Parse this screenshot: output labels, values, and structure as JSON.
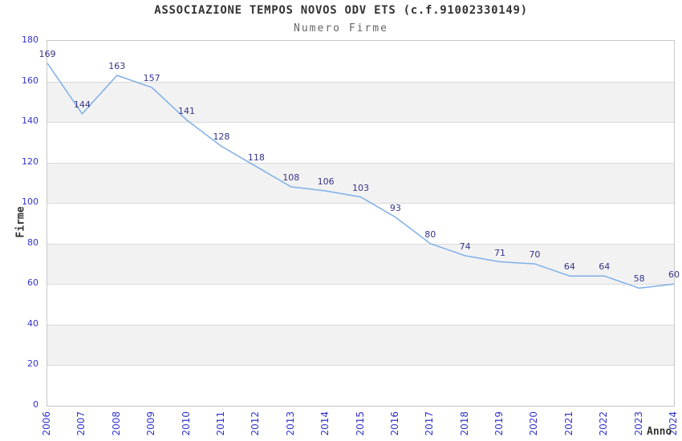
{
  "chart_data": {
    "type": "line",
    "title": "ASSOCIAZIONE TEMPOS NOVOS ODV ETS (c.f.91002330149)",
    "subtitle": "Numero Firme",
    "xlabel": "Anno",
    "ylabel": "Firme",
    "categories": [
      "2006",
      "2007",
      "2008",
      "2009",
      "2010",
      "2011",
      "2012",
      "2013",
      "2014",
      "2015",
      "2016",
      "2017",
      "2018",
      "2019",
      "2020",
      "2021",
      "2022",
      "2023",
      "2024"
    ],
    "series": [
      {
        "name": "Numero Firme",
        "values": [
          169,
          144,
          163,
          157,
          141,
          128,
          118,
          108,
          106,
          103,
          93,
          80,
          74,
          71,
          70,
          64,
          64,
          58,
          60
        ]
      }
    ],
    "ylim": [
      0,
      180
    ],
    "y_ticks": [
      0,
      20,
      40,
      60,
      80,
      100,
      120,
      140,
      160,
      180
    ],
    "grid": "horizontal-bands",
    "legend": "none",
    "data_labels": "shown",
    "colors": {
      "line": "#7dafe8",
      "data_label": "#333388",
      "tick_label": "#3333cc",
      "title": "#333333",
      "subtitle": "#666666",
      "band": "#f2f2f2",
      "gridline": "#d9d9d9",
      "border": "#c8c8c8"
    }
  }
}
